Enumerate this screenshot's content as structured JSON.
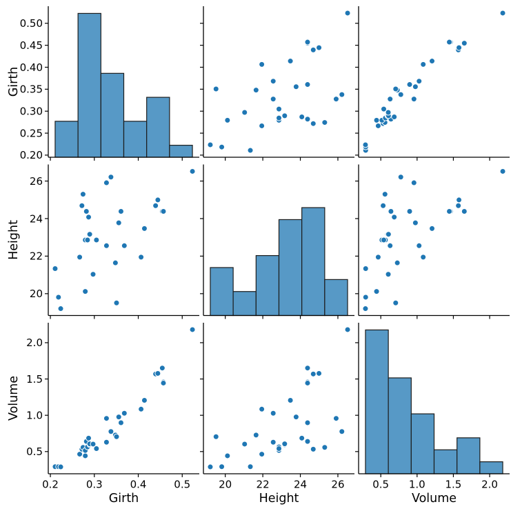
{
  "figure": {
    "background": "#ffffff",
    "title": ""
  },
  "chart_data": {
    "type": "scatter",
    "subtype": "pairplot-scatter-matrix",
    "title": "",
    "variables": [
      "Girth",
      "Height",
      "Volume"
    ],
    "n_observations": 31,
    "grid": "off",
    "legend": "none",
    "points": [
      [
        0.21082,
        21.336,
        0.29166
      ],
      [
        0.21844,
        19.812,
        0.29166
      ],
      [
        0.22352,
        19.2024,
        0.28883
      ],
      [
        0.2667,
        21.9456,
        0.4644
      ],
      [
        0.27178,
        24.6888,
        0.53236
      ],
      [
        0.27432,
        25.2984,
        0.55784
      ],
      [
        0.2794,
        20.1168,
        0.44174
      ],
      [
        0.2794,
        22.86,
        0.51537
      ],
      [
        0.28194,
        24.384,
        0.63996
      ],
      [
        0.28448,
        22.86,
        0.5635
      ],
      [
        0.28702,
        24.0792,
        0.68527
      ],
      [
        0.28956,
        23.1648,
        0.59465
      ],
      [
        0.28956,
        23.1648,
        0.60598
      ],
      [
        0.29718,
        21.0312,
        0.60315
      ],
      [
        0.3048,
        22.86,
        0.54085
      ],
      [
        0.32766,
        22.5552,
        0.62863
      ],
      [
        0.32766,
        25.908,
        0.95711
      ],
      [
        0.33782,
        26.2128,
        0.77588
      ],
      [
        0.34798,
        21.6408,
        0.72774
      ],
      [
        0.35052,
        19.5072,
        0.70509
      ],
      [
        0.3556,
        23.7744,
        0.97693
      ],
      [
        0.36068,
        24.384,
        0.89764
      ],
      [
        0.3683,
        22.5552,
        1.0279
      ],
      [
        0.4064,
        21.9456,
        1.08453
      ],
      [
        0.41402,
        23.4696,
        1.2063
      ],
      [
        0.43942,
        24.6888,
        1.56875
      ],
      [
        0.4445,
        24.9936,
        1.57725
      ],
      [
        0.45466,
        24.384,
        1.65087
      ],
      [
        0.4572,
        24.384,
        1.45832
      ],
      [
        0.4572,
        24.384,
        1.44416
      ],
      [
        0.52324,
        26.5176,
        2.18039
      ]
    ],
    "axes": {
      "Girth": {
        "label": "Girth",
        "lim": [
          0.1952,
          0.53886
        ],
        "x_ticks": [
          0.2,
          0.3,
          0.4,
          0.5
        ],
        "x_tick_labels": [
          "0.2",
          "0.3",
          "0.4",
          "0.5"
        ],
        "y_ticks": [
          0.2,
          0.25,
          0.3,
          0.35,
          0.4,
          0.45,
          0.5
        ],
        "y_tick_labels": [
          "0.20",
          "0.25",
          "0.30",
          "0.35",
          "0.40",
          "0.45",
          "0.50"
        ]
      },
      "Height": {
        "label": "Height",
        "lim": [
          18.83664,
          26.88336
        ],
        "x_ticks": [
          20,
          22,
          24,
          26
        ],
        "x_tick_labels": [
          "20",
          "22",
          "24",
          "26"
        ],
        "y_ticks": [
          20,
          22,
          24,
          26
        ],
        "y_tick_labels": [
          "20",
          "22",
          "24",
          "26"
        ]
      },
      "Volume": {
        "label": "Volume",
        "lim": [
          0.19425,
          2.27497
        ],
        "x_ticks": [
          0.5,
          1.0,
          1.5,
          2.0
        ],
        "x_tick_labels": [
          "0.5",
          "1.0",
          "1.5",
          "2.0"
        ],
        "y_ticks": [
          0.5,
          1.0,
          1.5,
          2.0
        ],
        "y_tick_labels": [
          "0.5",
          "1.0",
          "1.5",
          "2.0"
        ]
      }
    },
    "histograms": {
      "shared_count_max": 12.6,
      "Girth": {
        "bin_edges": [
          0.21082,
          0.26289,
          0.31496,
          0.36703,
          0.4191,
          0.47117,
          0.52324
        ],
        "counts": [
          3,
          12,
          7,
          3,
          5,
          1
        ]
      },
      "Height": {
        "bin_edges": [
          19.2024,
          20.4216,
          21.6408,
          22.86,
          24.0792,
          25.2984,
          26.5176
        ],
        "counts": [
          4,
          2,
          5,
          8,
          9,
          3
        ]
      },
      "Volume": {
        "bin_edges": [
          0.28883,
          0.60409,
          0.91935,
          1.23461,
          1.54987,
          1.86513,
          2.18039
        ],
        "counts": [
          12,
          8,
          5,
          2,
          3,
          1
        ]
      }
    },
    "style": {
      "scatter_fill": "#1f77b4",
      "scatter_edge": "#ffffff",
      "hist_fill": "#5799c6",
      "hist_edge": "#1c1c1c",
      "spine_color": "#000000",
      "tick_color": "#000000",
      "text_color": "#000000"
    }
  }
}
